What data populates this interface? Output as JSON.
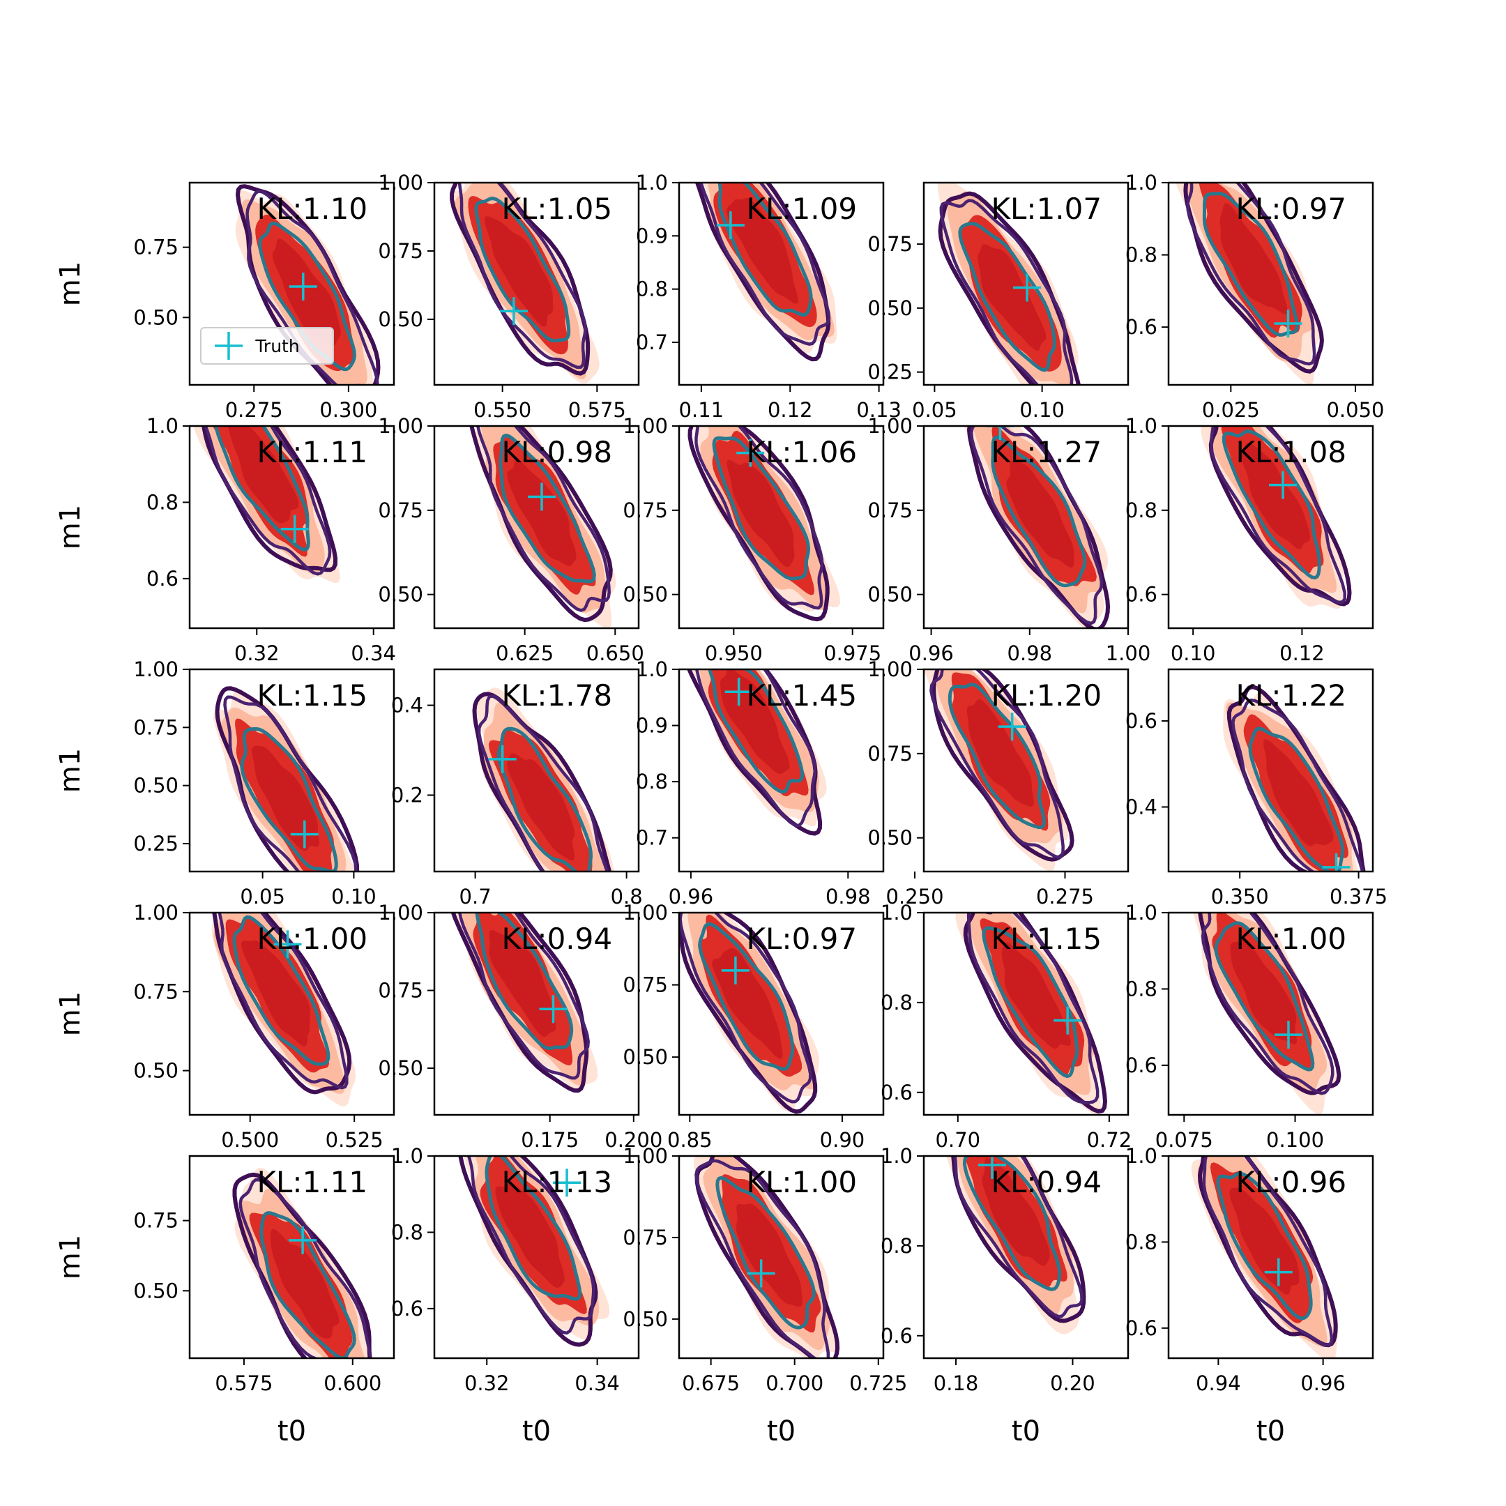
{
  "figure": {
    "x_label": "t0",
    "y_label": "m1",
    "legend": {
      "label": "Truth",
      "placement": "lower-left of first panel"
    },
    "colors": {
      "fill_inner": "#de2d26",
      "fill_core": "#c81b1e",
      "fill_mid": "#fcbba1",
      "fill_outer": "#fee0d2",
      "contour_outer": "#3f0f55",
      "contour_mid": "#4a2270",
      "contour_inner": "#2a788e",
      "truth_marker": "#17becf",
      "axes": "#000000"
    }
  },
  "chart_data": [
    {
      "row": 0,
      "col": 0,
      "type": "contour",
      "title": "KL:1.10",
      "xlim": [
        0.258,
        0.312
      ],
      "ylim": [
        0.26,
        0.98
      ],
      "xticks": [
        0.275,
        0.3
      ],
      "xtick_labels": [
        "0.275",
        "0.300"
      ],
      "yticks": [
        0.5,
        0.75
      ],
      "ytick_labels": [
        "0.50",
        "0.75"
      ],
      "truth": [
        0.288,
        0.61
      ],
      "center": [
        0.289,
        0.58
      ],
      "corr": 0.85,
      "legend": true
    },
    {
      "row": 0,
      "col": 1,
      "type": "contour",
      "title": "KL:1.05",
      "xlim": [
        0.532,
        0.586
      ],
      "ylim": [
        0.26,
        1.0
      ],
      "xticks": [
        0.55,
        0.575
      ],
      "xtick_labels": [
        "0.550",
        "0.575"
      ],
      "yticks": [
        0.5,
        0.75,
        1.0
      ],
      "ytick_labels": [
        "0.50",
        "0.75",
        "1.00"
      ],
      "truth": [
        0.553,
        0.53
      ],
      "center": [
        0.555,
        0.68
      ],
      "corr": 0.85
    },
    {
      "row": 0,
      "col": 2,
      "type": "contour",
      "title": "KL:1.09",
      "xlim": [
        0.1075,
        0.1305
      ],
      "ylim": [
        0.62,
        1.0
      ],
      "xticks": [
        0.11,
        0.12,
        0.13
      ],
      "xtick_labels": [
        "0.11",
        "0.12",
        "0.13"
      ],
      "yticks": [
        0.7,
        0.8,
        0.9,
        1.0
      ],
      "ytick_labels": [
        "0.7",
        "0.8",
        "0.9",
        "1.0"
      ],
      "truth": [
        0.1133,
        0.92
      ],
      "center": [
        0.117,
        0.88
      ],
      "corr": 0.85
    },
    {
      "row": 0,
      "col": 3,
      "type": "contour",
      "title": "KL:1.07",
      "xlim": [
        0.045,
        0.14
      ],
      "ylim": [
        0.2,
        0.99
      ],
      "xticks": [
        0.05,
        0.1
      ],
      "xtick_labels": [
        "0.05",
        "0.10"
      ],
      "yticks": [
        0.25,
        0.5,
        0.75
      ],
      "ytick_labels": [
        "0.25",
        "0.50",
        "0.75"
      ],
      "truth": [
        0.093,
        0.58
      ],
      "center": [
        0.085,
        0.55
      ],
      "corr": 0.85
    },
    {
      "row": 0,
      "col": 4,
      "type": "contour",
      "title": "KL:0.97",
      "xlim": [
        0.0125,
        0.0535
      ],
      "ylim": [
        0.44,
        1.0
      ],
      "xticks": [
        0.025,
        0.05
      ],
      "xtick_labels": [
        "0.025",
        "0.050"
      ],
      "yticks": [
        0.6,
        0.8,
        1.0
      ],
      "ytick_labels": [
        "0.6",
        "0.8",
        "1.0"
      ],
      "truth": [
        0.0365,
        0.61
      ],
      "center": [
        0.029,
        0.78
      ],
      "corr": 0.85
    },
    {
      "row": 1,
      "col": 0,
      "type": "contour",
      "title": "KL:1.11",
      "xlim": [
        0.3085,
        0.3435
      ],
      "ylim": [
        0.47,
        1.0
      ],
      "xticks": [
        0.32,
        0.34
      ],
      "xtick_labels": [
        "0.32",
        "0.34"
      ],
      "yticks": [
        0.6,
        0.8,
        1.0
      ],
      "ytick_labels": [
        "0.6",
        "0.8",
        "1.0"
      ],
      "truth": [
        0.3265,
        0.73
      ],
      "center": [
        0.321,
        0.88
      ],
      "corr": 0.85
    },
    {
      "row": 1,
      "col": 1,
      "type": "contour",
      "title": "KL:0.98",
      "xlim": [
        0.6,
        0.6565
      ],
      "ylim": [
        0.4,
        1.0
      ],
      "xticks": [
        0.625,
        0.65
      ],
      "xtick_labels": [
        "0.625",
        "0.650"
      ],
      "yticks": [
        0.5,
        0.75,
        1.0
      ],
      "ytick_labels": [
        "0.50",
        "0.75",
        "1.00"
      ],
      "truth": [
        0.6297,
        0.79
      ],
      "center": [
        0.63,
        0.74
      ],
      "corr": 0.85
    },
    {
      "row": 1,
      "col": 2,
      "type": "contour",
      "title": "KL:1.06",
      "xlim": [
        0.9385,
        0.9815
      ],
      "ylim": [
        0.4,
        1.0
      ],
      "xticks": [
        0.95,
        0.975
      ],
      "xtick_labels": [
        "0.950",
        "0.975"
      ],
      "yticks": [
        0.5,
        0.75,
        1.0
      ],
      "ytick_labels": [
        "0.50",
        "0.75",
        "1.00"
      ],
      "truth": [
        0.9535,
        0.92
      ],
      "center": [
        0.956,
        0.75
      ],
      "corr": 0.85
    },
    {
      "row": 1,
      "col": 3,
      "type": "contour",
      "title": "KL:1.27",
      "xlim": [
        0.9585,
        1.0
      ],
      "ylim": [
        0.4,
        1.0
      ],
      "xticks": [
        0.96,
        0.98,
        1.0
      ],
      "xtick_labels": [
        "0.96",
        "0.98",
        "1.00"
      ],
      "yticks": [
        0.5,
        0.75,
        1.0
      ],
      "ytick_labels": [
        "0.50",
        "0.75",
        "1.00"
      ],
      "truth": [
        0.974,
        1.0
      ],
      "center": [
        0.982,
        0.74
      ],
      "corr": 0.85
    },
    {
      "row": 1,
      "col": 4,
      "type": "contour",
      "title": "KL:1.08",
      "xlim": [
        0.0955,
        0.133
      ],
      "ylim": [
        0.52,
        1.0
      ],
      "xticks": [
        0.1,
        0.12
      ],
      "xtick_labels": [
        "0.10",
        "0.12"
      ],
      "yticks": [
        0.6,
        0.8,
        1.0
      ],
      "ytick_labels": [
        "0.6",
        "0.8",
        "1.0"
      ],
      "truth": [
        0.1165,
        0.86
      ],
      "center": [
        0.115,
        0.83
      ],
      "corr": 0.85
    },
    {
      "row": 2,
      "col": 0,
      "type": "contour",
      "title": "KL:1.15",
      "xlim": [
        0.01,
        0.122
      ],
      "ylim": [
        0.13,
        1.0
      ],
      "xticks": [
        0.05,
        0.1
      ],
      "xtick_labels": [
        "0.05",
        "0.10"
      ],
      "yticks": [
        0.25,
        0.5,
        0.75,
        1.0
      ],
      "ytick_labels": [
        "0.25",
        "0.50",
        "0.75",
        "1.00"
      ],
      "truth": [
        0.073,
        0.29
      ],
      "center": [
        0.063,
        0.44
      ],
      "corr": 0.85
    },
    {
      "row": 2,
      "col": 1,
      "type": "contour",
      "title": "KL:1.78",
      "xlim": [
        0.673,
        0.808
      ],
      "ylim": [
        0.03,
        0.48
      ],
      "xticks": [
        0.7,
        0.8
      ],
      "xtick_labels": [
        "0.7",
        "0.8"
      ],
      "yticks": [
        0.2,
        0.4
      ],
      "ytick_labels": [
        "0.2",
        "0.4"
      ],
      "truth": [
        0.718,
        0.28
      ],
      "center": [
        0.745,
        0.18
      ],
      "corr": 0.85
    },
    {
      "row": 2,
      "col": 2,
      "type": "contour",
      "title": "KL:1.45",
      "xlim": [
        0.9585,
        0.9845
      ],
      "ylim": [
        0.64,
        1.0
      ],
      "xticks": [
        0.96,
        0.98
      ],
      "xtick_labels": [
        "0.96",
        "0.98"
      ],
      "yticks": [
        0.7,
        0.8,
        0.9,
        1.0
      ],
      "ytick_labels": [
        "0.7",
        "0.8",
        "0.9",
        "1.0"
      ],
      "truth": [
        0.9661,
        0.96
      ],
      "center": [
        0.968,
        0.91
      ],
      "corr": 0.85
    },
    {
      "row": 2,
      "col": 3,
      "type": "contour",
      "title": "KL:1.20",
      "xlim": [
        0.2515,
        0.2855
      ],
      "ylim": [
        0.4,
        1.0
      ],
      "xticks": [
        0.25,
        0.275
      ],
      "xtick_labels": [
        "0.250",
        "0.275"
      ],
      "yticks": [
        0.5,
        0.75,
        1.0
      ],
      "ytick_labels": [
        "0.50",
        "0.75",
        "1.00"
      ],
      "truth": [
        0.2662,
        0.83
      ],
      "center": [
        0.264,
        0.75
      ],
      "corr": 0.85
    },
    {
      "row": 2,
      "col": 4,
      "type": "contour",
      "title": "KL:1.22",
      "xlim": [
        0.335,
        0.378
      ],
      "ylim": [
        0.25,
        0.72
      ],
      "xticks": [
        0.35,
        0.375
      ],
      "xtick_labels": [
        "0.350",
        "0.375"
      ],
      "yticks": [
        0.4,
        0.6
      ],
      "ytick_labels": [
        "0.4",
        "0.6"
      ],
      "truth": [
        0.3703,
        0.26
      ],
      "center": [
        0.362,
        0.42
      ],
      "corr": 0.85
    },
    {
      "row": 3,
      "col": 0,
      "type": "contour",
      "title": "KL:1.00",
      "xlim": [
        0.4855,
        0.5345
      ],
      "ylim": [
        0.36,
        1.0
      ],
      "xticks": [
        0.5,
        0.525
      ],
      "xtick_labels": [
        "0.500",
        "0.525"
      ],
      "yticks": [
        0.5,
        0.75,
        1.0
      ],
      "ytick_labels": [
        "0.50",
        "0.75",
        "1.00"
      ],
      "truth": [
        0.509,
        0.9
      ],
      "center": [
        0.507,
        0.75
      ],
      "corr": 0.85
    },
    {
      "row": 3,
      "col": 1,
      "type": "contour",
      "title": "KL:0.94",
      "xlim": [
        0.1405,
        0.2015
      ],
      "ylim": [
        0.35,
        1.0
      ],
      "xticks": [
        0.175,
        0.2
      ],
      "xtick_labels": [
        "0.175",
        "0.200"
      ],
      "yticks": [
        0.5,
        0.75,
        1.0
      ],
      "ytick_labels": [
        "0.50",
        "0.75",
        "1.00"
      ],
      "truth": [
        0.176,
        0.69
      ],
      "center": [
        0.167,
        0.78
      ],
      "corr": 0.85
    },
    {
      "row": 3,
      "col": 2,
      "type": "contour",
      "title": "KL:0.97",
      "xlim": [
        0.8465,
        0.9135
      ],
      "ylim": [
        0.3,
        1.0
      ],
      "xticks": [
        0.85,
        0.9
      ],
      "xtick_labels": [
        "0.85",
        "0.90"
      ],
      "yticks": [
        0.5,
        0.75,
        1.0
      ],
      "ytick_labels": [
        "0.50",
        "0.75",
        "1.00"
      ],
      "truth": [
        0.865,
        0.8
      ],
      "center": [
        0.869,
        0.7
      ],
      "corr": 0.85
    },
    {
      "row": 3,
      "col": 3,
      "type": "contour",
      "title": "KL:1.15",
      "xlim": [
        0.6955,
        0.7225
      ],
      "ylim": [
        0.55,
        1.0
      ],
      "xticks": [
        0.7,
        0.72
      ],
      "xtick_labels": [
        "0.70",
        "0.72"
      ],
      "yticks": [
        0.6,
        0.8,
        1.0
      ],
      "ytick_labels": [
        "0.6",
        "0.8",
        "1.0"
      ],
      "truth": [
        0.7145,
        0.76
      ],
      "center": [
        0.71,
        0.81
      ],
      "corr": 0.85
    },
    {
      "row": 3,
      "col": 4,
      "type": "contour",
      "title": "KL:1.00",
      "xlim": [
        0.0715,
        0.1175
      ],
      "ylim": [
        0.47,
        1.0
      ],
      "xticks": [
        0.075,
        0.1
      ],
      "xtick_labels": [
        "0.075",
        "0.100"
      ],
      "yticks": [
        0.6,
        0.8,
        1.0
      ],
      "ytick_labels": [
        "0.6",
        "0.8",
        "1.0"
      ],
      "truth": [
        0.0985,
        0.68
      ],
      "center": [
        0.093,
        0.79
      ],
      "corr": 0.85
    },
    {
      "row": 4,
      "col": 0,
      "type": "contour",
      "title": "KL:1.11",
      "xlim": [
        0.5625,
        0.6095
      ],
      "ylim": [
        0.26,
        0.98
      ],
      "xticks": [
        0.575,
        0.6
      ],
      "xtick_labels": [
        "0.575",
        "0.600"
      ],
      "yticks": [
        0.5,
        0.75
      ],
      "ytick_labels": [
        "0.50",
        "0.75"
      ],
      "truth": [
        0.5885,
        0.68
      ],
      "center": [
        0.589,
        0.52
      ],
      "corr": 0.85
    },
    {
      "row": 4,
      "col": 1,
      "type": "contour",
      "title": "KL:1.13",
      "xlim": [
        0.3105,
        0.3475
      ],
      "ylim": [
        0.47,
        1.0
      ],
      "xticks": [
        0.32,
        0.34
      ],
      "xtick_labels": [
        "0.32",
        "0.34"
      ],
      "yticks": [
        0.6,
        0.8,
        1.0
      ],
      "ytick_labels": [
        "0.6",
        "0.8",
        "1.0"
      ],
      "truth": [
        0.3345,
        0.93
      ],
      "center": [
        0.328,
        0.8
      ],
      "corr": 0.85
    },
    {
      "row": 4,
      "col": 2,
      "type": "contour",
      "title": "KL:1.00",
      "xlim": [
        0.6655,
        0.7265
      ],
      "ylim": [
        0.38,
        1.0
      ],
      "xticks": [
        0.675,
        0.7,
        0.725
      ],
      "xtick_labels": [
        "0.675",
        "0.700",
        "0.725"
      ],
      "yticks": [
        0.5,
        0.75,
        1.0
      ],
      "ytick_labels": [
        "0.50",
        "0.75",
        "1.00"
      ],
      "truth": [
        0.69,
        0.64
      ],
      "center": [
        0.692,
        0.7
      ],
      "corr": 0.85
    },
    {
      "row": 4,
      "col": 3,
      "type": "contour",
      "title": "KL:0.94",
      "xlim": [
        0.1745,
        0.2095
      ],
      "ylim": [
        0.55,
        1.0
      ],
      "xticks": [
        0.18,
        0.2
      ],
      "xtick_labels": [
        "0.18",
        "0.20"
      ],
      "yticks": [
        0.6,
        0.8,
        1.0
      ],
      "ytick_labels": [
        "0.6",
        "0.8",
        "1.0"
      ],
      "truth": [
        0.1862,
        0.98
      ],
      "center": [
        0.19,
        0.87
      ],
      "corr": 0.85
    },
    {
      "row": 4,
      "col": 4,
      "type": "contour",
      "title": "KL:0.96",
      "xlim": [
        0.9305,
        0.9695
      ],
      "ylim": [
        0.53,
        1.0
      ],
      "xticks": [
        0.94,
        0.96
      ],
      "xtick_labels": [
        "0.94",
        "0.96"
      ],
      "yticks": [
        0.6,
        0.8,
        1.0
      ],
      "ytick_labels": [
        "0.6",
        "0.8",
        "1.0"
      ],
      "truth": [
        0.9515,
        0.73
      ],
      "center": [
        0.949,
        0.8
      ],
      "corr": 0.85
    }
  ]
}
